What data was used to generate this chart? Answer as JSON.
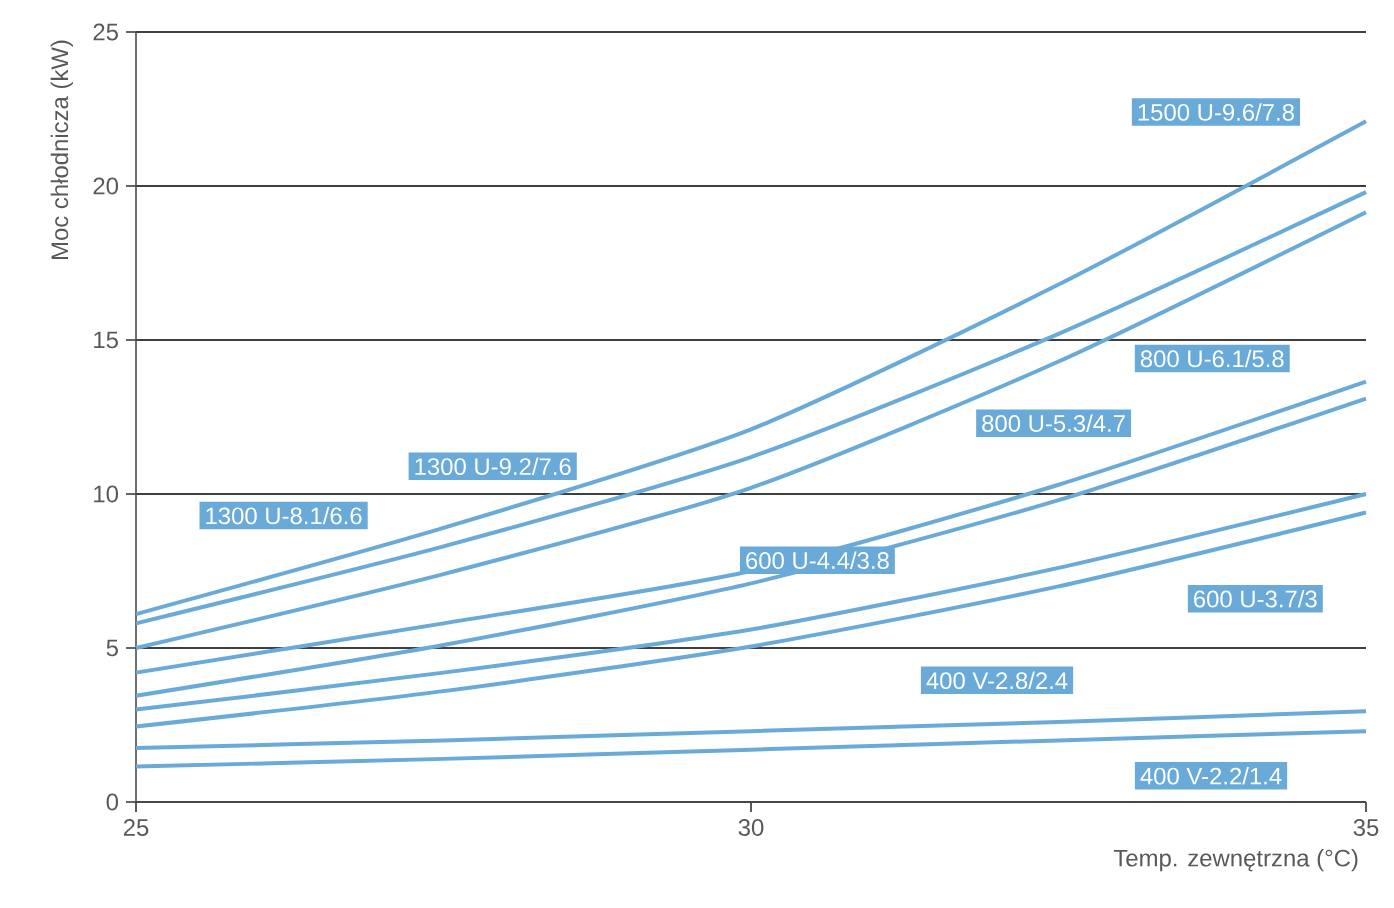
{
  "chart_data": {
    "type": "line",
    "xlabel": "Temp. zewnętrzna (°C)",
    "ylabel": "Moc chłodnicza (kW)",
    "x": [
      25,
      27.5,
      30,
      32.5,
      35
    ],
    "xlim": [
      25,
      35
    ],
    "xticks": [
      25,
      30,
      35
    ],
    "ylim": [
      0,
      25
    ],
    "yticks": [
      0,
      5,
      10,
      15,
      20,
      25
    ],
    "grid": "y",
    "series": [
      {
        "name": "1500 U-9.6/7.8",
        "color": "#6aaad8",
        "values": [
          6.1,
          8.9,
          12.1,
          16.8,
          22.1
        ]
      },
      {
        "name": "1300 U-9.2/7.6",
        "color": "#6aaad8",
        "values": [
          5.8,
          8.3,
          11.2,
          15.2,
          19.8
        ]
      },
      {
        "name": "1300 U-8.1/6.6",
        "color": "#6aaad8",
        "values": [
          5.0,
          7.4,
          10.2,
          14.3,
          19.15
        ]
      },
      {
        "name": "800 U-6.1/5.8",
        "color": "#6aaad8",
        "values": [
          4.2,
          5.8,
          7.5,
          10.3,
          13.65
        ]
      },
      {
        "name": "800 U-5.3/4.7",
        "color": "#6aaad8",
        "values": [
          3.45,
          5.1,
          7.1,
          9.8,
          13.1
        ]
      },
      {
        "name": "600 U-4.4/3.8",
        "color": "#6aaad8",
        "values": [
          3.0,
          4.2,
          5.6,
          7.6,
          10.0
        ]
      },
      {
        "name": "600 U-3.7/3",
        "color": "#6aaad8",
        "values": [
          2.45,
          3.6,
          5.05,
          7.0,
          9.4
        ]
      },
      {
        "name": "400 V-2.8/2.4",
        "color": "#6aaad8",
        "values": [
          1.75,
          2.0,
          2.3,
          2.6,
          2.95
        ]
      },
      {
        "name": "400 V-2.2/1.4",
        "color": "#6aaad8",
        "values": [
          1.15,
          1.4,
          1.7,
          2.0,
          2.3
        ]
      }
    ]
  }
}
